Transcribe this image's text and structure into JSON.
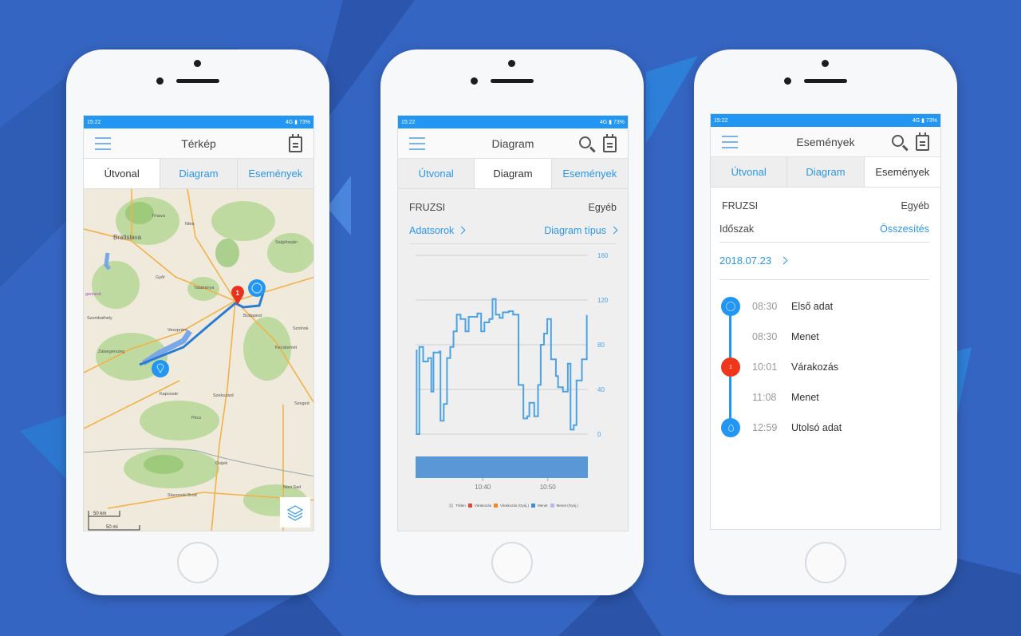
{
  "colors": {
    "background": "#3565c2",
    "accent": "#2196f3",
    "marker_red": "#f2361c",
    "chart_line": "#4aa3e6",
    "chart_bar": "#5a97d6"
  },
  "phones": [
    {
      "status": {
        "time": "15:22",
        "network": "4G",
        "battery": "73%"
      },
      "header": {
        "title": "Térkép",
        "menu_icon": "hamburger-icon",
        "report_icon": "calendar-report-icon"
      },
      "tabs": [
        {
          "label": "Útvonal",
          "active": true
        },
        {
          "label": "Diagram",
          "active": false
        },
        {
          "label": "Események",
          "active": false
        }
      ],
      "map": {
        "labels": [
          "Trnava",
          "Nitra",
          "Bratislava",
          "Salgótarján",
          "Győr",
          "Tatabánya",
          "Budapest",
          "Szombathely",
          "Veszprém",
          "Zalaegerszeg",
          "Kecskemét",
          "Szolnok",
          "Kaposvár",
          "Szekszárd",
          "Pécs",
          "Szeged",
          "Osijek",
          "Slavonski Brod",
          "Novi Sad",
          "genland"
        ],
        "scale_km": "50 km",
        "scale_mi": "50 mi",
        "waypoint_marker": "1",
        "layers_icon": "layers-icon"
      }
    },
    {
      "status": {
        "time": "15:22",
        "network": "4G",
        "battery": "73%"
      },
      "header": {
        "title": "Diagram",
        "search_icon": "search-icon",
        "report_icon": "calendar-report-icon"
      },
      "tabs": [
        {
          "label": "Útvonal",
          "active": false
        },
        {
          "label": "Diagram",
          "active": true
        },
        {
          "label": "Események",
          "active": false
        }
      ],
      "vehicle": "FRUZSI",
      "category": "Egyéb",
      "datasets_link": "Adatsorok",
      "chart_type_link": "Diagram típus"
    },
    {
      "status": {
        "time": "15:22",
        "network": "4G",
        "battery": "73%"
      },
      "header": {
        "title": "Események",
        "search_icon": "search-icon",
        "report_icon": "calendar-report-icon"
      },
      "tabs": [
        {
          "label": "Útvonal",
          "active": false
        },
        {
          "label": "Diagram",
          "active": false
        },
        {
          "label": "Események",
          "active": true
        }
      ],
      "vehicle": "FRUZSI",
      "category": "Egyéb",
      "period_label": "Időszak",
      "summary_link": "Összesítés",
      "date": "2018.07.23",
      "events": [
        {
          "time": "08:30",
          "label": "Első adat",
          "marker": "start"
        },
        {
          "time": "08:30",
          "label": "Menet",
          "marker": ""
        },
        {
          "time": "10:01",
          "label": "Várakozás",
          "marker": "1"
        },
        {
          "time": "11:08",
          "label": "Menet",
          "marker": ""
        },
        {
          "time": "12:59",
          "label": "Utolsó adat",
          "marker": "end"
        }
      ]
    }
  ],
  "chart_data": {
    "type": "line",
    "step": true,
    "xlim": [
      "10:29:40",
      "10:56:10"
    ],
    "ylim": [
      0,
      160
    ],
    "yticks": [
      0,
      40,
      80,
      120,
      160
    ],
    "xticks": [
      "10:40",
      "10:50"
    ],
    "grid": true,
    "legend_placement": "bottom",
    "points": [
      [
        "10:29:45",
        75
      ],
      [
        "10:29:50",
        0
      ],
      [
        "10:30:15",
        78
      ],
      [
        "10:30:50",
        65
      ],
      [
        "10:31:35",
        68
      ],
      [
        "10:32:05",
        38
      ],
      [
        "10:32:25",
        73
      ],
      [
        "10:33:20",
        74
      ],
      [
        "10:33:30",
        12
      ],
      [
        "10:34:00",
        27
      ],
      [
        "10:34:30",
        68
      ],
      [
        "10:35:00",
        78
      ],
      [
        "10:35:30",
        92
      ],
      [
        "10:36:00",
        107
      ],
      [
        "10:36:35",
        103
      ],
      [
        "10:37:20",
        92
      ],
      [
        "10:37:50",
        105
      ],
      [
        "10:39:10",
        108
      ],
      [
        "10:39:45",
        92
      ],
      [
        "10:40:15",
        100
      ],
      [
        "10:41:00",
        103
      ],
      [
        "10:41:30",
        121
      ],
      [
        "10:42:00",
        107
      ],
      [
        "10:42:35",
        104
      ],
      [
        "10:43:05",
        109
      ],
      [
        "10:44:00",
        110
      ],
      [
        "10:44:40",
        107
      ],
      [
        "10:45:30",
        44
      ],
      [
        "10:46:15",
        14
      ],
      [
        "10:46:50",
        16
      ],
      [
        "10:47:10",
        28
      ],
      [
        "10:47:55",
        16
      ],
      [
        "10:48:30",
        44
      ],
      [
        "10:48:55",
        80
      ],
      [
        "10:49:25",
        90
      ],
      [
        "10:49:55",
        103
      ],
      [
        "10:50:30",
        67
      ],
      [
        "10:51:15",
        52
      ],
      [
        "10:51:35",
        42
      ],
      [
        "10:52:20",
        38
      ],
      [
        "10:53:05",
        63
      ],
      [
        "10:53:30",
        4
      ],
      [
        "10:54:00",
        8
      ],
      [
        "10:54:25",
        48
      ],
      [
        "10:55:15",
        67
      ],
      [
        "10:56:00",
        106
      ]
    ],
    "state_bar": {
      "state": "Menet",
      "from": "10:29:40",
      "to": "10:56:10"
    },
    "legend": [
      {
        "name": "Tétlen",
        "color": "#cccccc"
      },
      {
        "name": "Várakozás",
        "color": "#e0473a"
      },
      {
        "name": "Várakozás (Gyúj.)",
        "color": "#f5871f"
      },
      {
        "name": "Menet",
        "color": "#3a8fd8"
      },
      {
        "name": "Menet (Gyúj.)",
        "color": "#b7b7f5"
      }
    ]
  }
}
